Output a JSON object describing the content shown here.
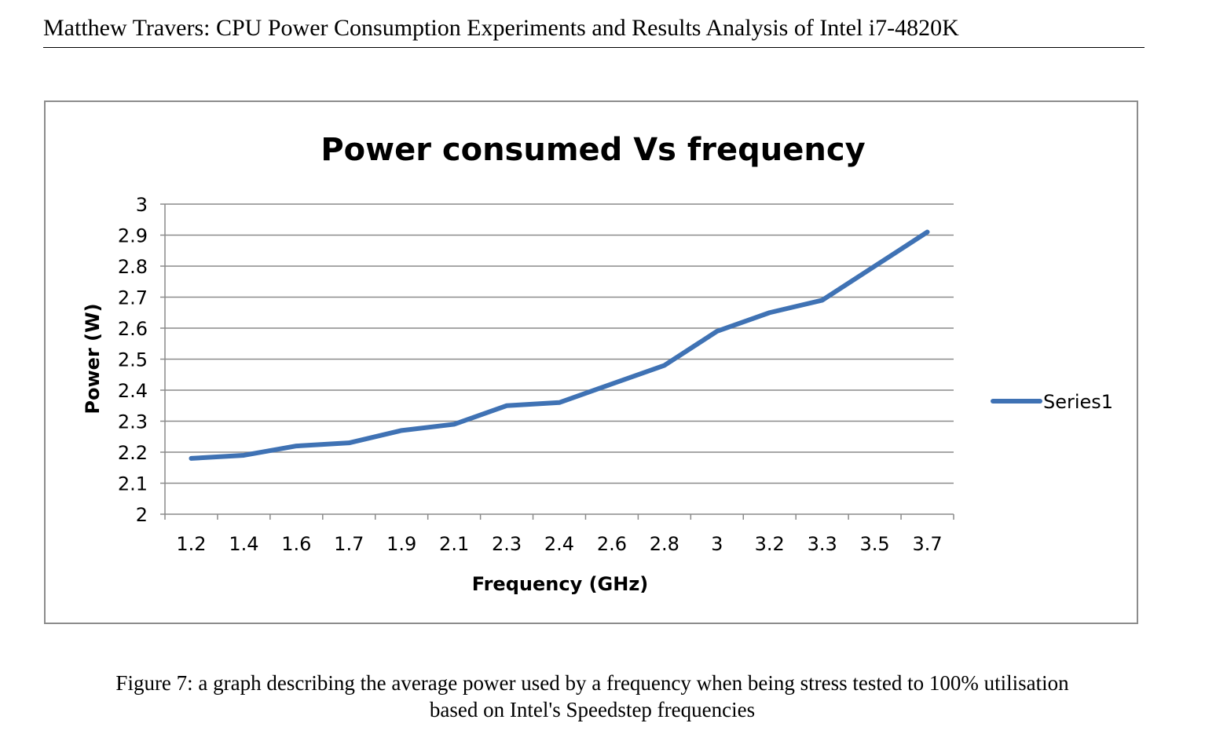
{
  "header": {
    "running_title": "Matthew Travers: CPU Power Consumption Experiments and Results Analysis of Intel i7-4820K"
  },
  "chart_data": {
    "type": "line",
    "title": "Power consumed Vs frequency",
    "xlabel": "Frequency (GHz)",
    "ylabel": "Power (W)",
    "categories": [
      "1.2",
      "1.4",
      "1.6",
      "1.7",
      "1.9",
      "2.1",
      "2.3",
      "2.4",
      "2.6",
      "2.8",
      "3",
      "3.2",
      "3.3",
      "3.5",
      "3.7"
    ],
    "series": [
      {
        "name": "Series1",
        "color": "#3f72b4",
        "values": [
          2.18,
          2.19,
          2.22,
          2.23,
          2.27,
          2.29,
          2.35,
          2.36,
          2.42,
          2.48,
          2.59,
          2.65,
          2.69,
          2.8,
          2.91
        ]
      }
    ],
    "ylim": [
      2,
      3
    ],
    "yticks": [
      "2",
      "2.1",
      "2.2",
      "2.3",
      "2.4",
      "2.5",
      "2.6",
      "2.7",
      "2.8",
      "2.9",
      "3"
    ],
    "grid": true,
    "legend_position": "right"
  },
  "caption": {
    "line1": "Figure 7: a graph describing the average power used by a frequency when being stress tested to 100% utilisation",
    "line2": "based on Intel's Speedstep frequencies"
  }
}
